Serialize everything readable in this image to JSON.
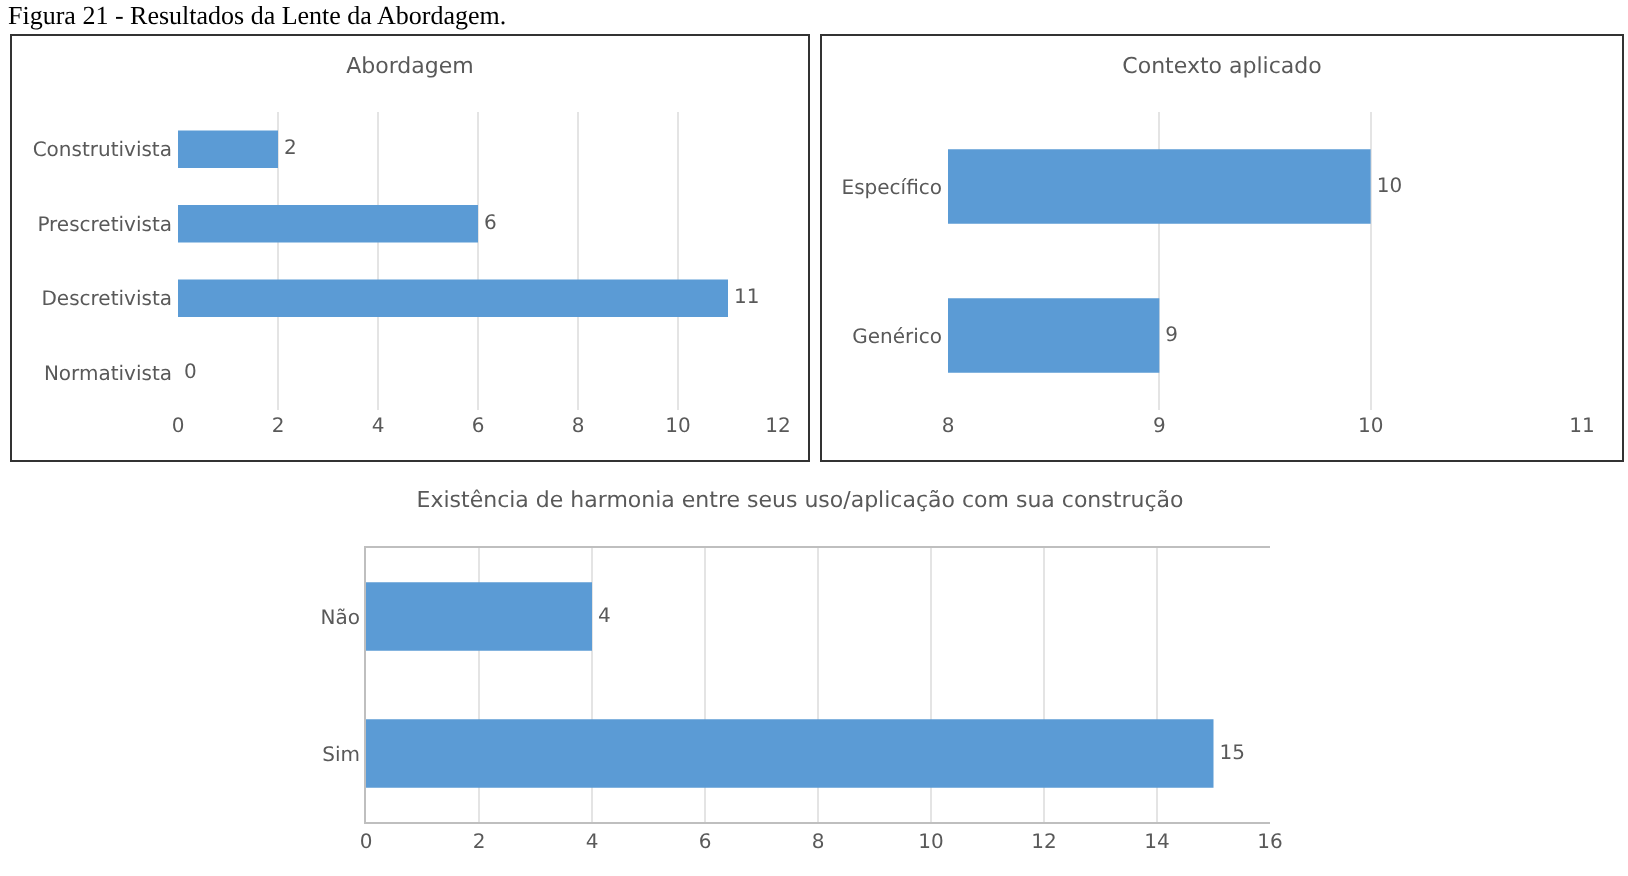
{
  "chart_data": [
    {
      "type": "bar",
      "orientation": "horizontal",
      "title": "Abordagem",
      "annotations": [
        "Figura 21 - Resultados da Lente da Abordagem."
      ],
      "categories": [
        "Construtivista",
        "Prescretivista",
        "Descretivista",
        "Normativista"
      ],
      "values": [
        2,
        6,
        11,
        0
      ],
      "color": "#5b9bd5",
      "xlim": [
        0,
        12
      ],
      "xticks": [
        0,
        2,
        4,
        6,
        8,
        10,
        12
      ],
      "grid": "x",
      "data_labels": true
    },
    {
      "type": "bar",
      "orientation": "horizontal",
      "title": "Contexto aplicado",
      "categories": [
        "Específico",
        "Genérico"
      ],
      "values": [
        10,
        9
      ],
      "color": "#5b9bd5",
      "xlim": [
        8,
        11
      ],
      "xticks": [
        8,
        9,
        10,
        11
      ],
      "grid": "x",
      "data_labels": true
    },
    {
      "type": "bar",
      "orientation": "horizontal",
      "title": "Existência de harmonia entre seus uso/aplicação com sua construção",
      "categories": [
        "Não",
        "Sim"
      ],
      "values": [
        4,
        15
      ],
      "color": "#5b9bd5",
      "xlim": [
        0,
        16
      ],
      "xticks": [
        0,
        2,
        4,
        6,
        8,
        10,
        12,
        14,
        16
      ],
      "grid": "x",
      "data_labels": true
    }
  ]
}
